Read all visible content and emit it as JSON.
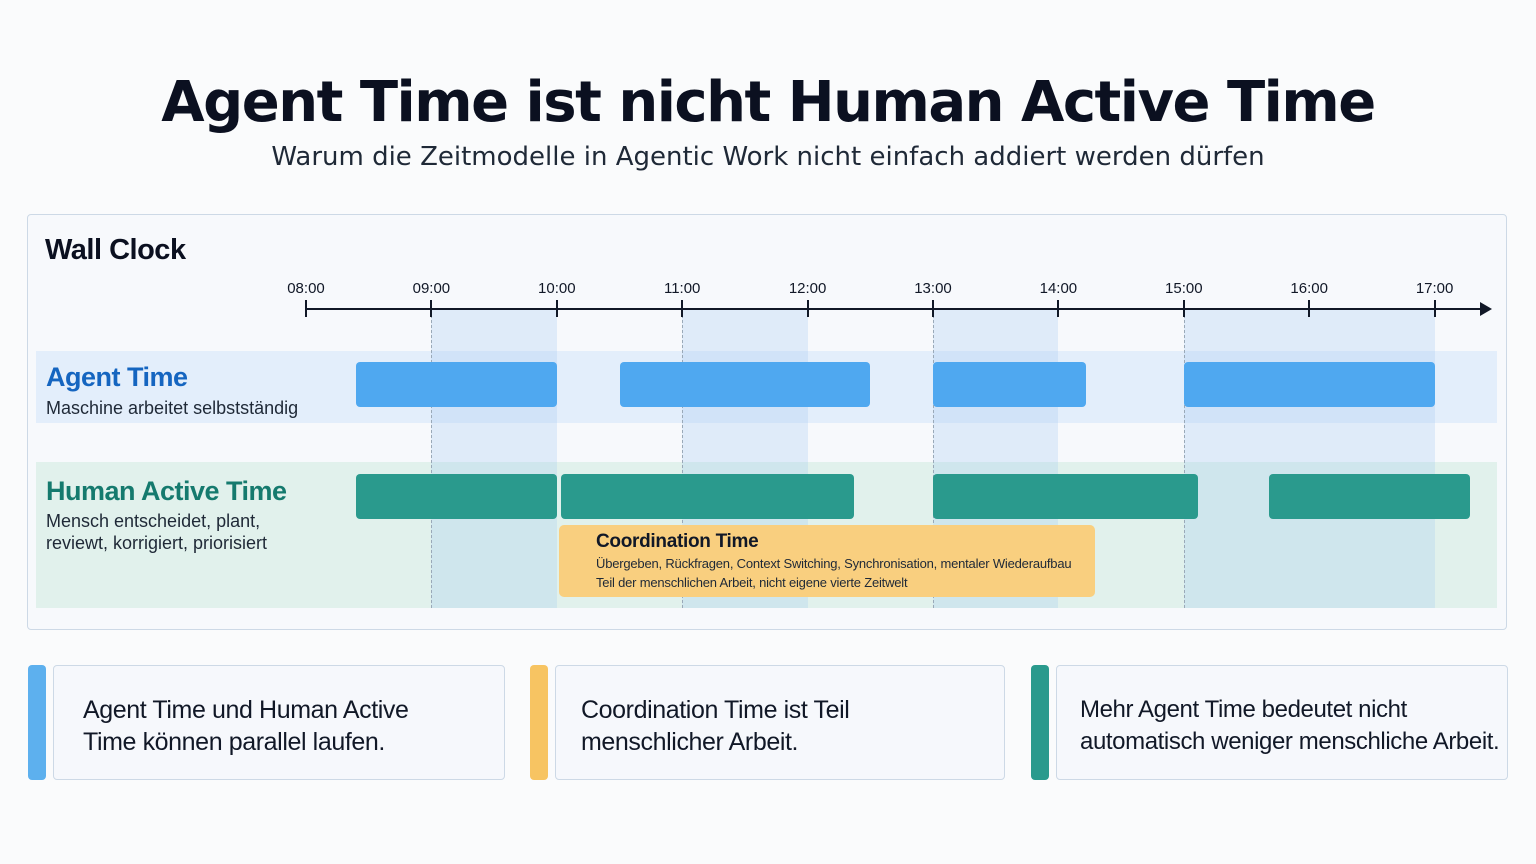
{
  "title": "Agent Time ist nicht Human Active Time",
  "subtitle": "Warum die Zeitmodelle in Agentic Work nicht einfach addiert werden dürfen",
  "wall_clock": {
    "title": "Wall Clock",
    "ticks": [
      "08:00",
      "09:00",
      "10:00",
      "11:00",
      "12:00",
      "13:00",
      "14:00",
      "15:00",
      "16:00",
      "17:00"
    ],
    "highlight_windows": [
      [
        "09:00",
        "10:00"
      ],
      [
        "11:00",
        "12:00"
      ],
      [
        "13:00",
        "14:00"
      ],
      [
        "15:00",
        "17:00"
      ]
    ]
  },
  "agent_lane": {
    "title": "Agent Time",
    "description": "Maschine arbeitet selbstständig",
    "color": "#4fa8f0",
    "bars": [
      {
        "start": "08:24",
        "end": "10:00"
      },
      {
        "start": "10:30",
        "end": "12:30"
      },
      {
        "start": "13:00",
        "end": "14:13"
      },
      {
        "start": "15:00",
        "end": "17:00"
      }
    ]
  },
  "human_lane": {
    "title": "Human Active Time",
    "description_lines": [
      "Mensch entscheidet, plant,",
      "reviewt, korrigiert, priorisiert"
    ],
    "color": "#2a9a8d",
    "bars": [
      {
        "start": "08:24",
        "end": "10:00"
      },
      {
        "start": "10:02",
        "end": "12:22"
      },
      {
        "start": "13:00",
        "end": "15:07"
      },
      {
        "start": "15:41",
        "end": "17:17"
      }
    ]
  },
  "coordination": {
    "title": "Coordination Time",
    "line1": "Übergeben, Rückfragen, Context Switching, Synchronisation, mentaler Wiederaufbau",
    "line2": "Teil der menschlichen Arbeit, nicht eigene vierte Zeitwelt",
    "color": "#f9cf7f"
  },
  "cards": [
    {
      "lines": [
        "Agent Time und Human Active",
        "Time können parallel laufen."
      ],
      "accent": "#5db0ee"
    },
    {
      "lines": [
        "Coordination Time ist Teil",
        "menschlicher Arbeit."
      ],
      "accent": "#f7c462"
    },
    {
      "lines": [
        "Mehr Agent Time bedeutet nicht",
        "automatisch weniger menschliche Arbeit."
      ],
      "accent": "#2a9a8d"
    }
  ]
}
